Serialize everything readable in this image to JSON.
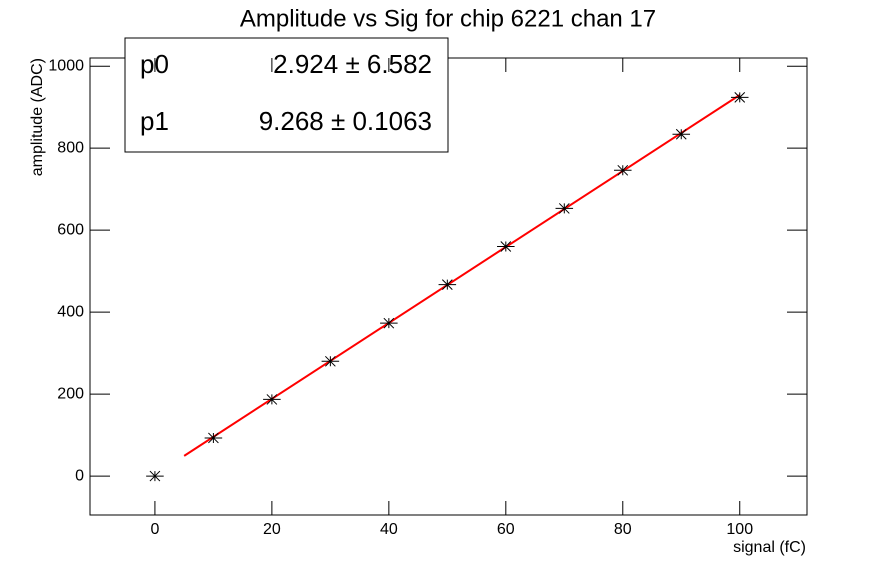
{
  "chart_data": {
    "type": "scatter",
    "title": "Amplitude vs Sig for chip 6221 chan 17",
    "x_label": "signal (fC)",
    "y_label": "amplitude (ADC)",
    "x": [
      0,
      10,
      20,
      30,
      40,
      50,
      60,
      70,
      80,
      90,
      100
    ],
    "series": [
      {
        "color": "#000000",
        "values": [
          0,
          93,
          187,
          280,
          373,
          467,
          560,
          653,
          746,
          834,
          924
        ],
        "xerr": [
          1.5,
          1.5,
          1.5,
          1.5,
          1.5,
          1.5,
          1.5,
          1.5,
          1.5,
          1.5,
          1.5
        ]
      },
      {
        "color": "#ff0000",
        "x": [
          5,
          100
        ],
        "values": [
          49.3,
          929.7
        ]
      }
    ],
    "stats": [
      {
        "name": "p0",
        "label": "2.924 ± 6.582"
      },
      {
        "name": "p1",
        "label": "9.268 ± 0.1063"
      }
    ],
    "xlim": [
      -11.1,
      111.5
    ],
    "ylim": [
      -95,
      1020
    ],
    "xticks": [
      0,
      20,
      40,
      60,
      80,
      100
    ],
    "yticks": [
      0,
      200,
      400,
      600,
      800,
      1000
    ]
  }
}
